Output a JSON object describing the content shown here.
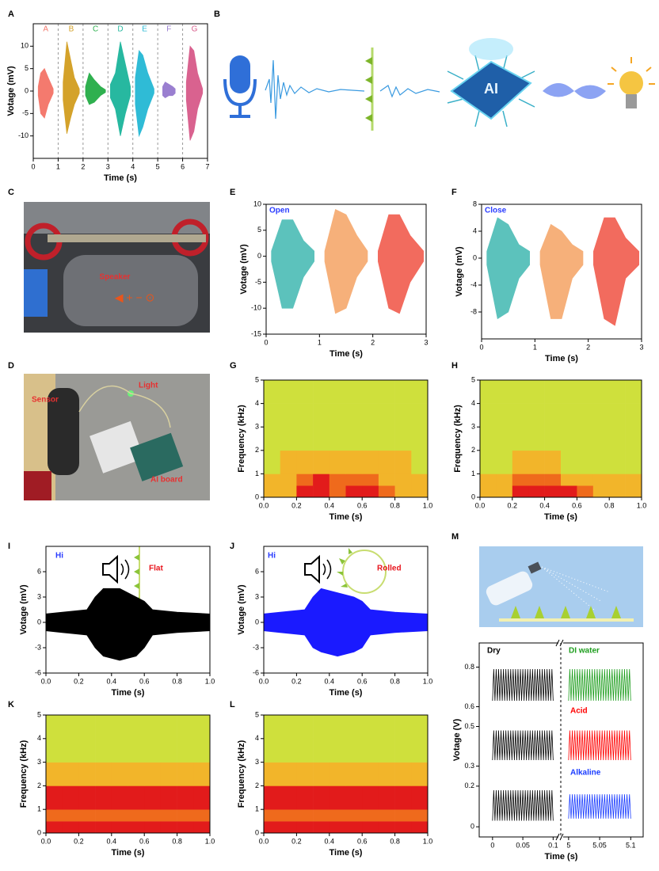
{
  "figure": {
    "B": {
      "panel": "B",
      "chip": "AI"
    },
    "C": {
      "panel": "C",
      "speaker": "Speaker"
    },
    "D": {
      "panel": "D",
      "sensor": "Sensor",
      "light": "Light",
      "board": "AI board"
    }
  },
  "chart_data": [
    {
      "type": "waveform",
      "panel": "A",
      "xlabel": "Time (s)",
      "ylabel": "Votage (mV)",
      "xlim": [
        0,
        7
      ],
      "ylim": [
        -15,
        15
      ],
      "xticks": [
        0,
        1,
        2,
        3,
        4,
        5,
        6,
        7
      ],
      "yticks": [
        -10,
        -5,
        0,
        5,
        10
      ],
      "dividers": [
        1,
        2,
        3,
        4,
        5,
        6
      ],
      "series": [
        {
          "name": "A",
          "color": "#f47a6e",
          "x": [
            0.2,
            0.3,
            0.45,
            0.6,
            0.8
          ],
          "upper": [
            1,
            4,
            5,
            3,
            0.5
          ],
          "lower": [
            -1,
            -5,
            -6,
            -3,
            -0.5
          ]
        },
        {
          "name": "B",
          "color": "#d4a22a",
          "x": [
            1.2,
            1.35,
            1.5,
            1.65,
            1.85
          ],
          "upper": [
            2,
            11,
            7,
            3,
            0.5
          ],
          "lower": [
            -2,
            -9.5,
            -6,
            -3,
            -0.5
          ]
        },
        {
          "name": "C",
          "color": "#2fb04f",
          "x": [
            2.1,
            2.25,
            2.45,
            2.7,
            2.9
          ],
          "upper": [
            1,
            4,
            2.5,
            1,
            0.3
          ],
          "lower": [
            -1,
            -3,
            -2.5,
            -1,
            -0.3
          ]
        },
        {
          "name": "D",
          "color": "#27b8a0",
          "x": [
            3.1,
            3.3,
            3.5,
            3.7,
            3.9
          ],
          "upper": [
            1.5,
            4,
            11,
            6,
            1
          ],
          "lower": [
            -1.5,
            -4,
            -10,
            -5,
            -1
          ]
        },
        {
          "name": "E",
          "color": "#2fbbd6",
          "x": [
            4.1,
            4.25,
            4.4,
            4.6,
            4.85
          ],
          "upper": [
            3,
            9,
            8,
            4,
            0.5
          ],
          "lower": [
            -3,
            -10,
            -8,
            -4,
            -0.5
          ]
        },
        {
          "name": "F",
          "color": "#9a7fd0",
          "x": [
            5.2,
            5.3,
            5.45,
            5.6,
            5.7
          ],
          "upper": [
            1,
            2,
            1.5,
            1,
            0.5
          ],
          "lower": [
            -1,
            -1.5,
            -1,
            -1,
            -0.5
          ]
        },
        {
          "name": "G",
          "color": "#d9628f",
          "x": [
            6.15,
            6.3,
            6.45,
            6.6,
            6.8
          ],
          "upper": [
            2,
            10,
            9,
            4,
            0.5
          ],
          "lower": [
            -2,
            -11,
            -9,
            -4,
            -0.5
          ]
        }
      ]
    },
    {
      "type": "waveform",
      "panel": "E",
      "xlabel": "Time (s)",
      "ylabel": "Votage (mV)",
      "xlim": [
        0,
        3
      ],
      "ylim": [
        -15,
        10
      ],
      "xticks": [
        0,
        1,
        2,
        3
      ],
      "yticks": [
        -15,
        -10,
        -5,
        0,
        5,
        10
      ],
      "annotations": [
        {
          "text": "Open",
          "color": "#2a3cff"
        }
      ],
      "series": [
        {
          "color": "#5cc2bc",
          "x": [
            0.1,
            0.3,
            0.5,
            0.7,
            0.9
          ],
          "upper": [
            1,
            7,
            7,
            3,
            1
          ],
          "lower": [
            -1,
            -10,
            -10,
            -4,
            -1
          ]
        },
        {
          "color": "#f6b07a",
          "x": [
            1.1,
            1.3,
            1.5,
            1.7,
            1.9
          ],
          "upper": [
            1,
            9,
            8,
            4,
            1
          ],
          "lower": [
            -1,
            -11,
            -10,
            -4,
            -1
          ]
        },
        {
          "color": "#f26b5e",
          "x": [
            2.1,
            2.3,
            2.5,
            2.7,
            2.95
          ],
          "upper": [
            1,
            8,
            8,
            4,
            1
          ],
          "lower": [
            -1,
            -10,
            -11,
            -5,
            -1
          ]
        }
      ]
    },
    {
      "type": "waveform",
      "panel": "F",
      "xlabel": "Time (s)",
      "ylabel": "Votage (mV)",
      "xlim": [
        0,
        3
      ],
      "ylim": [
        -12,
        8
      ],
      "xticks": [
        0,
        1,
        2,
        3
      ],
      "yticks": [
        -8,
        -4,
        0,
        4,
        8
      ],
      "annotations": [
        {
          "text": "Close",
          "color": "#2a3cff"
        }
      ],
      "series": [
        {
          "color": "#5cc2bc",
          "x": [
            0.1,
            0.3,
            0.5,
            0.7,
            0.9
          ],
          "upper": [
            1,
            6,
            5,
            2,
            1
          ],
          "lower": [
            -1,
            -9,
            -8,
            -3,
            -1
          ]
        },
        {
          "color": "#f6b07a",
          "x": [
            1.1,
            1.3,
            1.5,
            1.7,
            1.9
          ],
          "upper": [
            1,
            5,
            4,
            2,
            1
          ],
          "lower": [
            -1,
            -9,
            -9,
            -3,
            -1
          ]
        },
        {
          "color": "#f26b5e",
          "x": [
            2.1,
            2.3,
            2.5,
            2.7,
            2.95
          ],
          "upper": [
            1,
            6,
            6,
            3,
            1
          ],
          "lower": [
            -1,
            -9,
            -10,
            -3,
            -1
          ]
        }
      ]
    },
    {
      "type": "heatmap",
      "panel": "G",
      "xlabel": "Time (s)",
      "ylabel": "Frequency (kHz)",
      "xlim": [
        0,
        1
      ],
      "ylim": [
        0,
        5
      ],
      "xticks": [
        {
          "value": 0,
          "label": "0.0"
        },
        0.2,
        0.4,
        0.6,
        0.8,
        {
          "value": 1,
          "label": "1.0"
        }
      ],
      "yticks": [
        0,
        1,
        2,
        3,
        4,
        5
      ],
      "x_edges": [
        0,
        0.1,
        0.2,
        0.3,
        0.4,
        0.5,
        0.6,
        0.7,
        0.8,
        0.9,
        1
      ],
      "y_edges": [
        0,
        0.5,
        1,
        2,
        3,
        4,
        5
      ],
      "colors": [
        "#cfe03c",
        "#f2b52a",
        "#ef6a1c",
        "#e21b1b"
      ],
      "z": [
        [
          1,
          1,
          3,
          3,
          2,
          3,
          3,
          2,
          1,
          1
        ],
        [
          1,
          1,
          2,
          3,
          2,
          2,
          2,
          1,
          1,
          1
        ],
        [
          0,
          1,
          1,
          1,
          1,
          1,
          1,
          1,
          1,
          0
        ],
        [
          0,
          0,
          0,
          0,
          0,
          0,
          0,
          0,
          0,
          0
        ],
        [
          0,
          0,
          0,
          0,
          0,
          0,
          0,
          0,
          0,
          0
        ],
        [
          0,
          0,
          0,
          0,
          0,
          0,
          0,
          0,
          0,
          0
        ]
      ]
    },
    {
      "type": "heatmap",
      "panel": "H",
      "xlabel": "Time (s)",
      "ylabel": "Frequency (kHz)",
      "xlim": [
        0,
        1
      ],
      "ylim": [
        0,
        5
      ],
      "xticks": [
        {
          "value": 0,
          "label": "0.0"
        },
        0.2,
        0.4,
        0.6,
        0.8,
        {
          "value": 1,
          "label": "1.0"
        }
      ],
      "yticks": [
        0,
        1,
        2,
        3,
        4,
        5
      ],
      "x_edges": [
        0,
        0.1,
        0.2,
        0.3,
        0.4,
        0.5,
        0.6,
        0.7,
        0.8,
        0.9,
        1
      ],
      "y_edges": [
        0,
        0.5,
        1,
        2,
        3,
        4,
        5
      ],
      "colors": [
        "#cfe03c",
        "#f2b52a",
        "#ef6a1c",
        "#e21b1b"
      ],
      "z": [
        [
          1,
          1,
          3,
          3,
          3,
          3,
          2,
          1,
          1,
          1
        ],
        [
          1,
          1,
          2,
          2,
          2,
          1,
          1,
          1,
          1,
          1
        ],
        [
          0,
          0,
          1,
          1,
          1,
          0,
          0,
          0,
          0,
          0
        ],
        [
          0,
          0,
          0,
          0,
          0,
          0,
          0,
          0,
          0,
          0
        ],
        [
          0,
          0,
          0,
          0,
          0,
          0,
          0,
          0,
          0,
          0
        ],
        [
          0,
          0,
          0,
          0,
          0,
          0,
          0,
          0,
          0,
          0
        ]
      ]
    },
    {
      "type": "waveform",
      "panel": "I",
      "xlabel": "Time (s)",
      "ylabel": "Votage (mV)",
      "xlim": [
        0,
        1
      ],
      "ylim": [
        -6,
        9
      ],
      "xticks": [
        {
          "value": 0,
          "label": "0.0"
        },
        0.2,
        0.4,
        0.6,
        0.8,
        {
          "value": 1,
          "label": "1.0"
        }
      ],
      "yticks": [
        -6,
        -3,
        0,
        3,
        6
      ],
      "annotations": [
        {
          "text": "Hi",
          "color": "#2a3cff"
        },
        {
          "text": "Flat",
          "color": "#e8141c"
        }
      ],
      "series": [
        {
          "color": "#000000",
          "x": [
            0,
            0.1,
            0.25,
            0.3,
            0.35,
            0.45,
            0.55,
            0.6,
            0.65,
            0.8,
            1
          ],
          "upper": [
            1,
            1.2,
            1.5,
            3,
            4,
            4,
            3,
            2.5,
            1.5,
            1.2,
            1
          ],
          "lower": [
            -1,
            -1.2,
            -1.5,
            -3,
            -4,
            -4.5,
            -4,
            -3,
            -1.5,
            -1.2,
            -1
          ]
        }
      ]
    },
    {
      "type": "waveform",
      "panel": "J",
      "xlabel": "Time (s)",
      "ylabel": "Votage (mV)",
      "xlim": [
        0,
        1
      ],
      "ylim": [
        -6,
        9
      ],
      "xticks": [
        {
          "value": 0,
          "label": "0.0"
        },
        0.2,
        0.4,
        0.6,
        0.8,
        {
          "value": 1,
          "label": "1.0"
        }
      ],
      "yticks": [
        -6,
        -3,
        0,
        3,
        6
      ],
      "annotations": [
        {
          "text": "Hi",
          "color": "#2a3cff"
        },
        {
          "text": "Rolled",
          "color": "#e8141c"
        }
      ],
      "series": [
        {
          "color": "#1a1aff",
          "x": [
            0,
            0.1,
            0.25,
            0.3,
            0.35,
            0.45,
            0.55,
            0.6,
            0.65,
            0.8,
            1
          ],
          "upper": [
            1,
            1.2,
            1.5,
            3,
            4,
            3.5,
            3,
            2.5,
            1.5,
            1.2,
            1
          ],
          "lower": [
            -1,
            -1.2,
            -1.5,
            -3,
            -3.5,
            -4,
            -3.5,
            -3,
            -1.5,
            -1.2,
            -1
          ]
        }
      ]
    },
    {
      "type": "heatmap",
      "panel": "K",
      "xlabel": "Time (s)",
      "ylabel": "Frequency (kHz)",
      "xlim": [
        0,
        1
      ],
      "ylim": [
        0,
        5
      ],
      "xticks": [
        {
          "value": 0,
          "label": "0.0"
        },
        0.2,
        0.4,
        0.6,
        0.8,
        {
          "value": 1,
          "label": "1.0"
        }
      ],
      "yticks": [
        0,
        1,
        2,
        3,
        4,
        5
      ],
      "x_edges": [
        0,
        0.1,
        0.2,
        0.3,
        0.4,
        0.5,
        0.6,
        0.7,
        0.8,
        0.9,
        1
      ],
      "y_edges": [
        0,
        0.5,
        1,
        2,
        3,
        4,
        5
      ],
      "colors": [
        "#cfe03c",
        "#f2b52a",
        "#ef6a1c",
        "#e21b1b"
      ],
      "z": [
        [
          3,
          3,
          3,
          3,
          3,
          3,
          3,
          3,
          3,
          3
        ],
        [
          2,
          2,
          2,
          2,
          2,
          2,
          2,
          2,
          2,
          2
        ],
        [
          3,
          3,
          3,
          3,
          3,
          3,
          3,
          3,
          3,
          3
        ],
        [
          1,
          1,
          1,
          1,
          1,
          1,
          1,
          1,
          1,
          1
        ],
        [
          0,
          0,
          0,
          0,
          0,
          0,
          0,
          0,
          0,
          0
        ],
        [
          0,
          0,
          0,
          0,
          0,
          0,
          0,
          0,
          0,
          0
        ]
      ]
    },
    {
      "type": "heatmap",
      "panel": "L",
      "xlabel": "Time (s)",
      "ylabel": "Frequency (kHz)",
      "xlim": [
        0,
        1
      ],
      "ylim": [
        0,
        5
      ],
      "xticks": [
        {
          "value": 0,
          "label": "0.0"
        },
        0.2,
        0.4,
        0.6,
        0.8,
        {
          "value": 1,
          "label": "1.0"
        }
      ],
      "yticks": [
        0,
        1,
        2,
        3,
        4,
        5
      ],
      "x_edges": [
        0,
        0.1,
        0.2,
        0.3,
        0.4,
        0.5,
        0.6,
        0.7,
        0.8,
        0.9,
        1
      ],
      "y_edges": [
        0,
        0.5,
        1,
        2,
        3,
        4,
        5
      ],
      "colors": [
        "#cfe03c",
        "#f2b52a",
        "#ef6a1c",
        "#e21b1b"
      ],
      "z": [
        [
          3,
          3,
          3,
          3,
          3,
          3,
          3,
          3,
          3,
          3
        ],
        [
          2,
          2,
          2,
          2,
          2,
          2,
          2,
          2,
          2,
          2
        ],
        [
          3,
          3,
          3,
          3,
          3,
          3,
          3,
          3,
          3,
          3
        ],
        [
          1,
          1,
          1,
          1,
          1,
          1,
          1,
          1,
          1,
          1
        ],
        [
          0,
          0,
          0,
          0,
          0,
          0,
          0,
          0,
          0,
          0
        ],
        [
          0,
          0,
          0,
          0,
          0,
          0,
          0,
          0,
          0,
          0
        ]
      ]
    },
    {
      "type": "broken",
      "panel": "M",
      "xlabel": "Time (s)",
      "ylabel": "Votage (V)",
      "xaxes": [
        {
          "xlim": [
            -0.022,
            0.11
          ],
          "xticks": [
            0,
            0.05,
            0.1
          ]
        },
        {
          "xlim": [
            4.99,
            5.12
          ],
          "xticks": [
            5,
            5.05,
            5.1
          ]
        }
      ],
      "rows": [
        {
          "ylim": [
            0.55,
            0.87
          ],
          "yticks": [
            0.6,
            0.8
          ]
        },
        {
          "ylim": [
            0.25,
            0.55
          ],
          "yticks": [
            0.3,
            0.5
          ]
        },
        {
          "ylim": [
            -0.05,
            0.25
          ],
          "yticks": [
            0,
            0.2
          ]
        }
      ],
      "traces": [
        {
          "name": "Dry",
          "color": "#000000",
          "xaxis": 0,
          "row": 0,
          "x": [
            0,
            0.1
          ],
          "min": 0.63,
          "max": 0.79,
          "period": 0.004
        },
        {
          "color": "#000000",
          "xaxis": 0,
          "row": 1,
          "x": [
            0,
            0.1
          ],
          "min": 0.33,
          "max": 0.48,
          "period": 0.004
        },
        {
          "color": "#000000",
          "xaxis": 0,
          "row": 2,
          "x": [
            0,
            0.1
          ],
          "min": 0.03,
          "max": 0.18,
          "period": 0.004
        },
        {
          "name": "DI water",
          "color": "#1e9e1e",
          "xaxis": 1,
          "row": 0,
          "x": [
            5,
            5.1
          ],
          "min": 0.63,
          "max": 0.79,
          "period": 0.004
        },
        {
          "name": "Acid",
          "color": "#ff0000",
          "xaxis": 1,
          "row": 1,
          "x": [
            5,
            5.1
          ],
          "min": 0.33,
          "max": 0.48,
          "period": 0.004
        },
        {
          "name": "Alkaline",
          "color": "#1a3cff",
          "xaxis": 1,
          "row": 2,
          "x": [
            5,
            5.1
          ],
          "min": 0.04,
          "max": 0.16,
          "period": 0.004
        }
      ]
    }
  ]
}
